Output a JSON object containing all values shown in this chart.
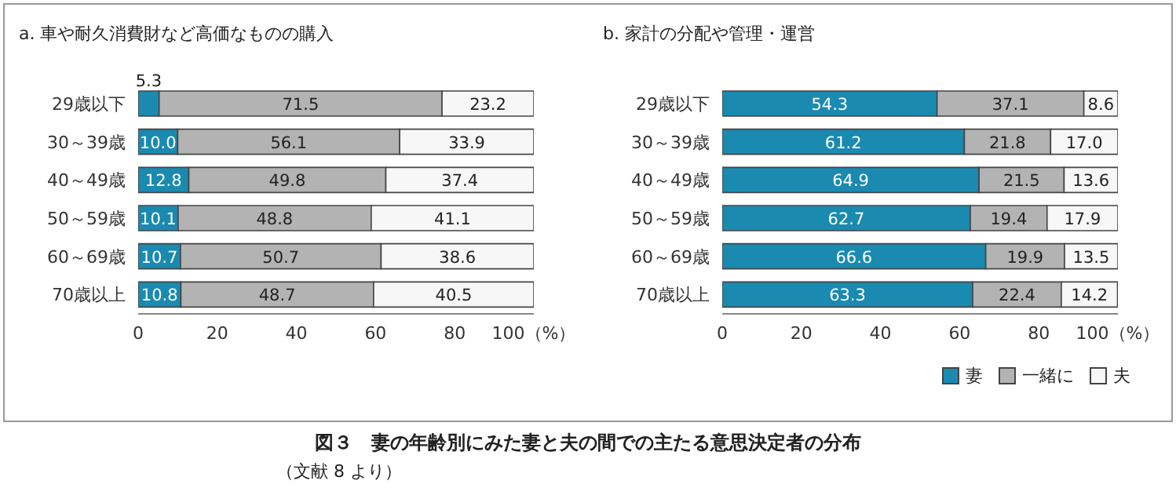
{
  "chart_data": [
    {
      "type": "bar",
      "orientation": "horizontal",
      "stacked": true,
      "title": "a. 車や耐久消費財など高価なものの購入",
      "categories": [
        "29歳以下",
        "30～39歳",
        "40～49歳",
        "50～59歳",
        "60～69歳",
        "70歳以上"
      ],
      "series": [
        {
          "color": "#1a8ab0",
          "values": [
            5.3,
            10.0,
            12.8,
            10.1,
            10.7,
            10.8
          ],
          "value_labels": [
            "5.3",
            "10.0",
            "12.8",
            "10.1",
            "10.7",
            "10.8"
          ]
        },
        {
          "color": "#b3b3b3",
          "values": [
            71.5,
            56.1,
            49.8,
            48.8,
            50.7,
            48.7
          ]
        },
        {
          "color": "#f7f7f7",
          "values": [
            23.2,
            33.9,
            37.4,
            41.1,
            38.6,
            40.5
          ]
        }
      ],
      "xlim": [
        0,
        100
      ],
      "xticks": [
        0,
        20,
        40,
        60,
        80,
        {
          "value": 100,
          "label": "100（%）"
        }
      ],
      "data_labels": true,
      "legend": false,
      "annotations": [
        "図３　妻の年齢別にみた妻と夫の間での主たる意思決定者の分布",
        "（文献 8 より）"
      ]
    },
    {
      "type": "bar",
      "orientation": "horizontal",
      "stacked": true,
      "title": "b. 家計の分配や管理・運営",
      "categories": [
        "29歳以下",
        "30～39歳",
        "40～49歳",
        "50～59歳",
        "60～69歳",
        "70歳以上"
      ],
      "series": [
        {
          "name": "妻",
          "color": "#1a8ab0",
          "values": [
            54.3,
            61.2,
            64.9,
            62.7,
            66.6,
            63.3
          ]
        },
        {
          "name": "一緒に",
          "color": "#b3b3b3",
          "values": [
            37.1,
            21.8,
            21.5,
            19.4,
            19.9,
            22.4
          ]
        },
        {
          "name": "夫",
          "color": "#f7f7f7",
          "values": [
            8.6,
            17.0,
            13.6,
            17.9,
            13.5,
            14.2
          ],
          "value_labels": [
            "8.6",
            "17.0",
            "13.6",
            "17.9",
            "13.5",
            "14.2"
          ]
        }
      ],
      "xlim": [
        0,
        100
      ],
      "xticks": [
        0,
        20,
        40,
        60,
        80,
        {
          "value": 100,
          "label": "100（%）"
        }
      ],
      "data_labels": true,
      "legend": "bottom right"
    }
  ]
}
